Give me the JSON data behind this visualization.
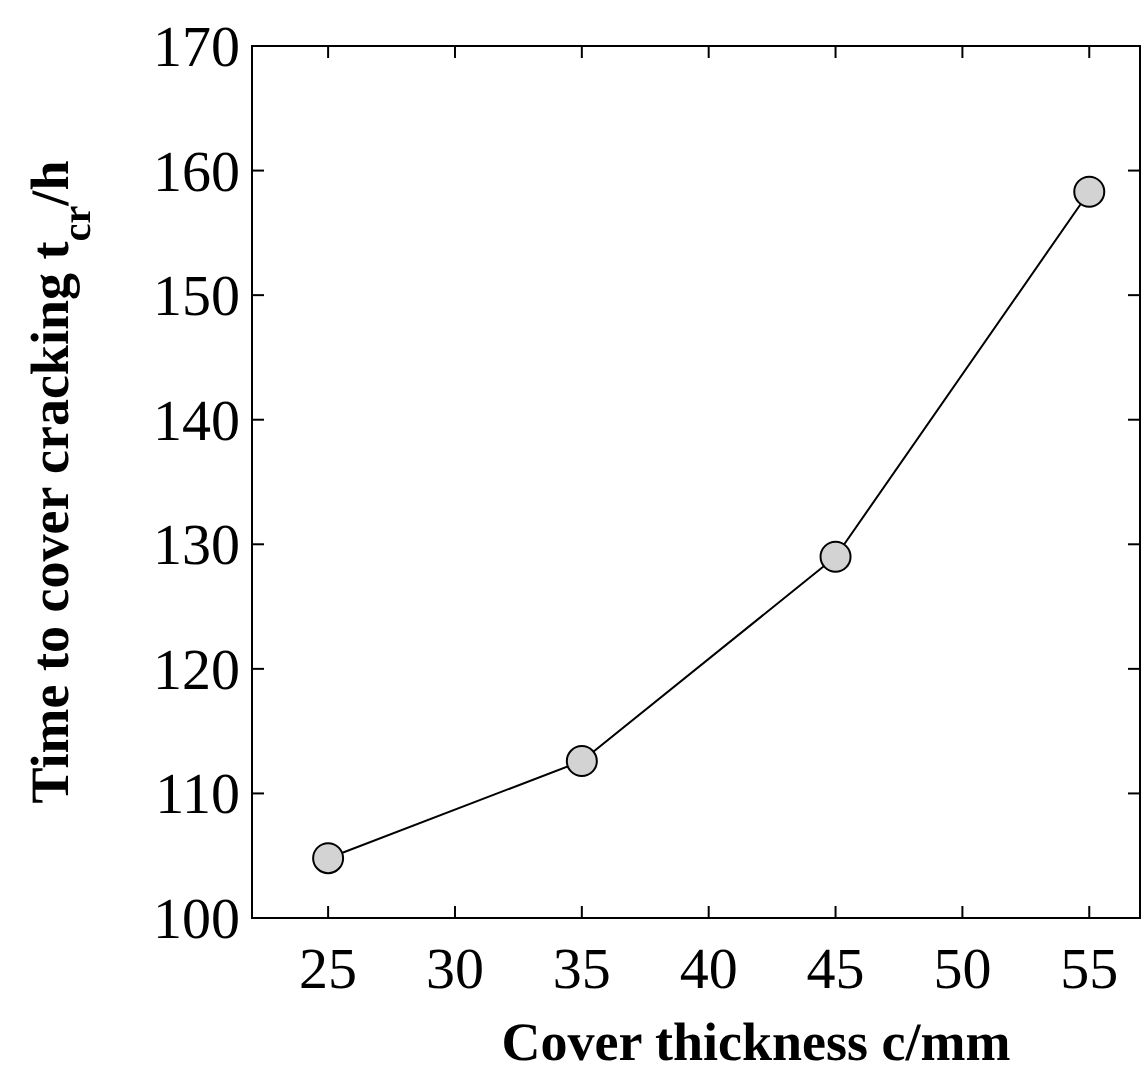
{
  "chart_data": {
    "type": "line",
    "xlabel": "Cover thickness c/mm",
    "ylabel": "Time to cover cracking t$_{cr}$/h",
    "x": [
      25,
      35,
      45,
      55
    ],
    "series": [
      {
        "color": "#000000",
        "values": [
          104.8,
          112.6,
          129,
          158.3
        ]
      }
    ],
    "marker": "circle",
    "line_style": "solid",
    "xlim": [
      22,
      57
    ],
    "xticks": [
      25,
      30,
      35,
      40,
      45,
      50,
      55
    ],
    "ylim": [
      100,
      170
    ],
    "yticks": [
      100,
      110,
      120,
      130,
      140,
      150,
      160,
      170
    ],
    "grid": false
  }
}
